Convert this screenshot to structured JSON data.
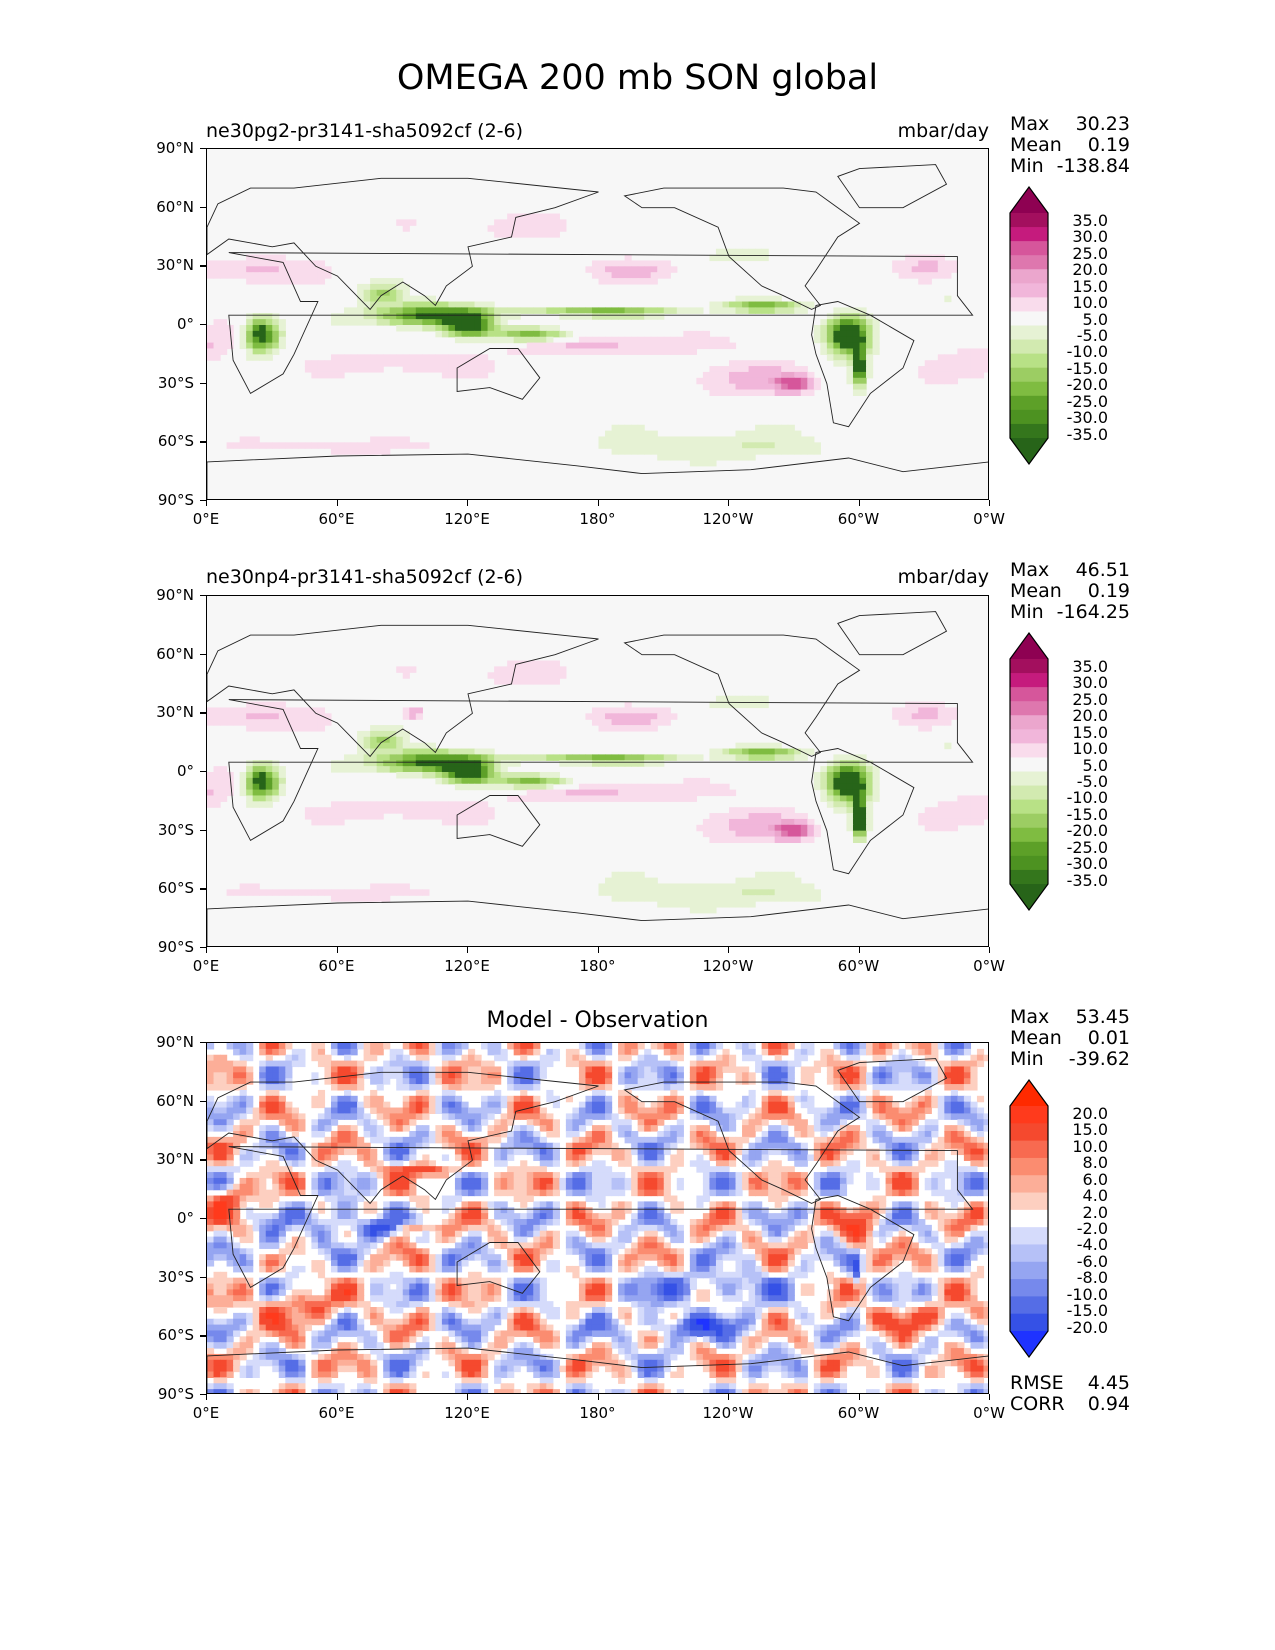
{
  "figure_title": "OMEGA 200 mb SON global",
  "axes": {
    "y_ticks": [
      "90°N",
      "60°N",
      "30°N",
      "0°",
      "30°S",
      "60°S",
      "90°S"
    ],
    "x_ticks": [
      "0°E",
      "60°E",
      "120°E",
      "180°",
      "120°W",
      "60°W",
      "0°W"
    ]
  },
  "panels": [
    {
      "title_left": "ne30pg2-pr3141-sha5092cf (2-6)",
      "title_right": "mbar/day",
      "stats": {
        "max_label": "Max",
        "max": "30.23",
        "mean_label": "Mean",
        "mean": "0.19",
        "min_label": "Min",
        "min": "-138.84"
      },
      "colorbar": [
        "35.0",
        "30.0",
        "25.0",
        "20.0",
        "15.0",
        "10.0",
        "5.0",
        "-5.0",
        "-10.0",
        "-15.0",
        "-20.0",
        "-25.0",
        "-30.0",
        "-35.0"
      ]
    },
    {
      "title_left": "ne30np4-pr3141-sha5092cf (2-6)",
      "title_right": "mbar/day",
      "stats": {
        "max_label": "Max",
        "max": "46.51",
        "mean_label": "Mean",
        "mean": "0.19",
        "min_label": "Min",
        "min": "-164.25"
      },
      "colorbar": [
        "35.0",
        "30.0",
        "25.0",
        "20.0",
        "15.0",
        "10.0",
        "5.0",
        "-5.0",
        "-10.0",
        "-15.0",
        "-20.0",
        "-25.0",
        "-30.0",
        "-35.0"
      ]
    },
    {
      "title_center": "Model - Observation",
      "stats": {
        "max_label": "Max",
        "max": "53.45",
        "mean_label": "Mean",
        "mean": "0.01",
        "min_label": "Min",
        "min": "-39.62"
      },
      "colorbar": [
        "20.0",
        "15.0",
        "10.0",
        "8.0",
        "6.0",
        "4.0",
        "2.0",
        "-2.0",
        "-4.0",
        "-6.0",
        "-8.0",
        "-10.0",
        "-15.0",
        "-20.0"
      ],
      "rmse_label": "RMSE",
      "rmse": "4.45",
      "corr_label": "CORR",
      "corr": "0.94"
    }
  ],
  "colors": {
    "omega_scale": [
      "#8e0152",
      "#a30f5e",
      "#c51b7d",
      "#d6569b",
      "#de77ae",
      "#eba6cd",
      "#f1b6da",
      "#f9dcec",
      "#f7f7f7",
      "#e6f2d4",
      "#d2eab0",
      "#b8e186",
      "#9ccd63",
      "#7fbc41",
      "#5da028",
      "#4d9221",
      "#34761c",
      "#276419"
    ],
    "diff_scale": [
      "#ff2a00",
      "#ff3a1c",
      "#f5492e",
      "#f86a50",
      "#fb8c70",
      "#fcae98",
      "#fdcfc0",
      "#ffffff",
      "#d5dbfb",
      "#b6c1f7",
      "#95a5f1",
      "#7689ec",
      "#556de6",
      "#3551e6",
      "#1f33ff"
    ]
  },
  "chart_data": [
    {
      "type": "heatmap",
      "title": "ne30pg2-pr3141-sha5092cf (2-6)",
      "units": "mbar/day",
      "xlabel": "",
      "ylabel": "",
      "xlim": [
        0,
        360
      ],
      "ylim": [
        -90,
        90
      ],
      "contour_levels": [
        -35,
        -30,
        -25,
        -20,
        -15,
        -10,
        -5,
        5,
        10,
        15,
        20,
        25,
        30,
        35
      ],
      "max": 30.23,
      "mean": 0.19,
      "min": -138.84
    },
    {
      "type": "heatmap",
      "title": "ne30np4-pr3141-sha5092cf (2-6)",
      "units": "mbar/day",
      "xlabel": "",
      "ylabel": "",
      "xlim": [
        0,
        360
      ],
      "ylim": [
        -90,
        90
      ],
      "contour_levels": [
        -35,
        -30,
        -25,
        -20,
        -15,
        -10,
        -5,
        5,
        10,
        15,
        20,
        25,
        30,
        35
      ],
      "max": 46.51,
      "mean": 0.19,
      "min": -164.25
    },
    {
      "type": "heatmap",
      "title": "Model - Observation",
      "xlabel": "",
      "ylabel": "",
      "xlim": [
        0,
        360
      ],
      "ylim": [
        -90,
        90
      ],
      "contour_levels": [
        -20,
        -15,
        -10,
        -8,
        -6,
        -4,
        -2,
        2,
        4,
        6,
        8,
        10,
        15,
        20
      ],
      "max": 53.45,
      "mean": 0.01,
      "min": -39.62,
      "rmse": 4.45,
      "corr": 0.94
    }
  ]
}
